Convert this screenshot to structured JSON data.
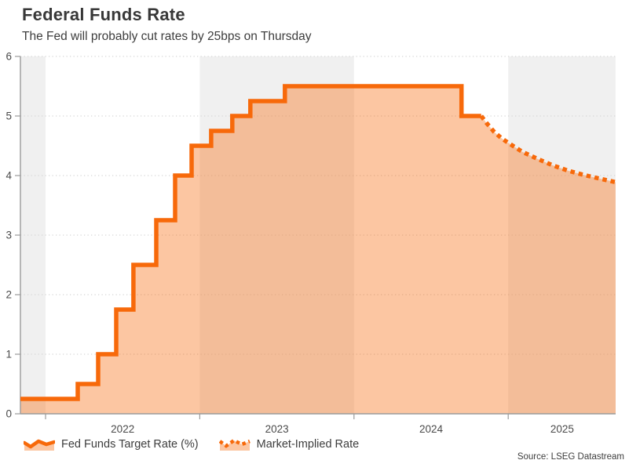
{
  "source": "Source: LSEG Datastream",
  "colors": {
    "line": "#f7690a",
    "fill": "rgba(247,105,10,0.38)",
    "band": "#f0f0f0",
    "grid": "#d7d7d7",
    "axis": "#9b9b9b",
    "title_color": "#383838",
    "text_color": "#3d3d3d",
    "tick_label_color": "#4a4a4a"
  },
  "legend": {
    "items": [
      {
        "label": "Fed Funds Target Rate (%)",
        "swatch": "solid-area-swatch"
      },
      {
        "label": "Market-Implied Rate",
        "swatch": "dotted-area-swatch"
      }
    ]
  },
  "chart_data": {
    "type": "line",
    "title": "Federal Funds Rate",
    "subtitle": "The Fed will probably cut rates by 25bps on Thursday",
    "x_unit": "decimal_year",
    "x_range": [
      2021.837,
      2025.696
    ],
    "y_range": [
      0,
      6
    ],
    "y_ticks": [
      0,
      1,
      2,
      3,
      4,
      5,
      6
    ],
    "x_tick_boundaries": [
      2022,
      2023,
      2024,
      2025
    ],
    "x_tick_labels": [
      {
        "label": "2022",
        "t": 2022.5
      },
      {
        "label": "2023",
        "t": 2023.5
      },
      {
        "label": "2024",
        "t": 2024.5
      },
      {
        "label": "2025",
        "t": 2025.35
      }
    ],
    "shaded_bands": [
      [
        2021.837,
        2022.0
      ],
      [
        2023.0,
        2024.0
      ],
      [
        2025.0,
        2025.696
      ]
    ],
    "grid": "dotted-horizontal",
    "legend_position": "bottom",
    "series": [
      {
        "name": "Fed Funds Target Rate (%)",
        "style": "solid-step",
        "steps": [
          [
            2021.837,
            0.25
          ],
          [
            2022.209,
            0.5
          ],
          [
            2022.341,
            1.0
          ],
          [
            2022.458,
            1.75
          ],
          [
            2022.57,
            2.5
          ],
          [
            2022.718,
            3.25
          ],
          [
            2022.84,
            4.0
          ],
          [
            2022.947,
            4.5
          ],
          [
            2023.074,
            4.75
          ],
          [
            2023.211,
            5.0
          ],
          [
            2023.328,
            5.25
          ],
          [
            2023.552,
            5.5
          ],
          [
            2024.697,
            5.0
          ]
        ],
        "end_t": 2024.825
      },
      {
        "name": "Market-Implied Rate",
        "style": "dotted",
        "points": [
          [
            2024.825,
            5.0
          ],
          [
            2024.86,
            4.88
          ],
          [
            2024.91,
            4.73
          ],
          [
            2024.96,
            4.62
          ],
          [
            2025.0,
            4.55
          ],
          [
            2025.09,
            4.4
          ],
          [
            2025.19,
            4.28
          ],
          [
            2025.29,
            4.17
          ],
          [
            2025.39,
            4.08
          ],
          [
            2025.49,
            4.01
          ],
          [
            2025.59,
            3.95
          ],
          [
            2025.696,
            3.89
          ]
        ]
      }
    ]
  }
}
